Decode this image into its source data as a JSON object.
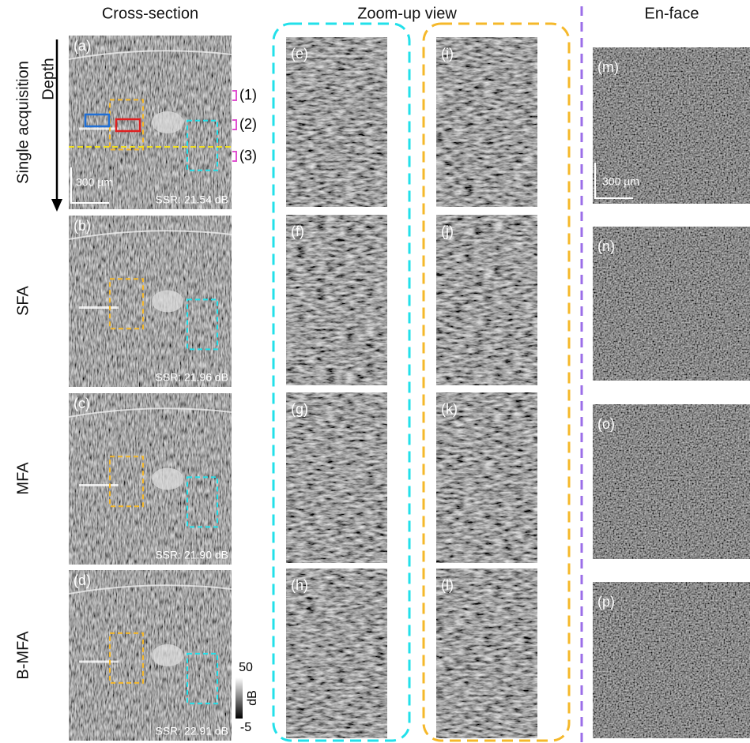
{
  "columns": [
    "Cross-section",
    "Zoom-up view",
    "En-face"
  ],
  "rows": [
    "Single acquisition",
    "SFA",
    "MFA",
    "B-MFA"
  ],
  "depth_label": "Depth",
  "panels": {
    "cross_section": [
      "(a)",
      "(b)",
      "(c)",
      "(d)"
    ],
    "zoom_cyan": [
      "(e)",
      "(f)",
      "(g)",
      "(h)"
    ],
    "zoom_orange": [
      "(i)",
      "(j)",
      "(k)",
      "(l)"
    ],
    "en_face": [
      "(m)",
      "(n)",
      "(o)",
      "(p)"
    ]
  },
  "ssr": [
    "SSR: 21.54 dB",
    "SSR: 21.96 dB",
    "SSR: 21.90 dB",
    "SSR: 22.91 dB"
  ],
  "scale_bars": {
    "cross_section": "300 µm",
    "en_face": "300 µm"
  },
  "layer_markers": [
    "(1)",
    "(2)",
    "(3)"
  ],
  "colorbar": {
    "max": 50,
    "min": -5,
    "unit": "dB"
  }
}
